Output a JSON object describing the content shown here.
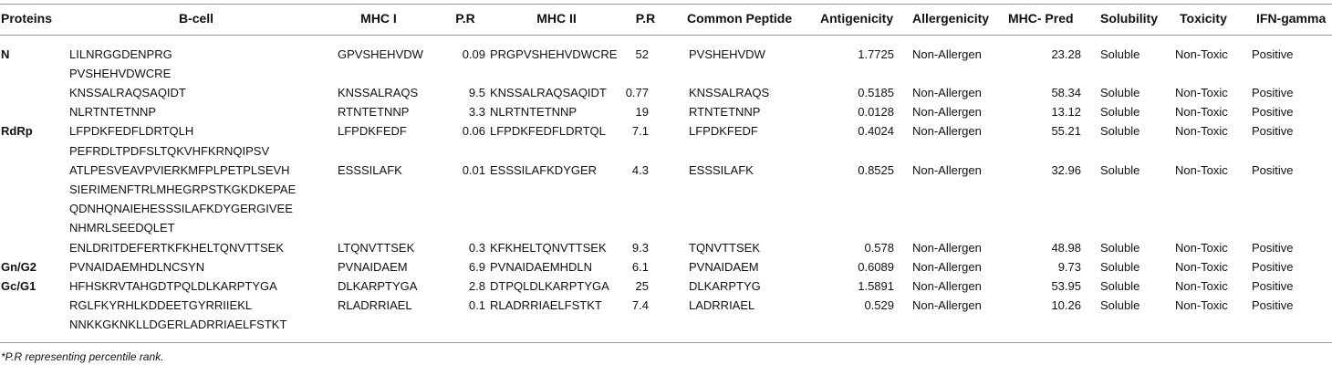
{
  "headers": {
    "proteins": "Proteins",
    "bcell": "B-cell",
    "mhc1": "MHC I",
    "pr1": "P.R",
    "mhc2": "MHC II",
    "pr2": "P.R",
    "common": "Common Peptide",
    "antigenicity": "Antigenicity",
    "allergenicity": "Allergenicity",
    "mhcpred": "MHC- Pred",
    "solubility": "Solubility",
    "toxicity": "Toxicity",
    "ifn": "IFN-gamma"
  },
  "proteins": [
    "N",
    "RdRp",
    "Gn/G2",
    "Gc/G1"
  ],
  "bcell_lines": [
    "LILNRGGDENPRG",
    "PVSHEHVDWCRE",
    "KNSSALRAQSAQIDT",
    "NLRTNTETNNP",
    "LFPDKFEDFLDRTQLH",
    "PEFRDLTPDFSLTQKVHFKRNQIPSV",
    "ATLPESVEAVPVIERKMFPLPETPLSEVH",
    "SIERIMENFTRLMHEGRPSTKGKDKEPAE",
    "QDNHQNAIEHESSSILAFKDYGERGIVEE",
    "NHMRLSEEDQLET",
    "ENLDRITDEFERTKFKHELTQNVTTSEK",
    "PVNAIDAEMHDLNCSYN",
    "HFHSKRVTAHGDTPQLDLKARPTYGA",
    "RGLFKYRHLKDDEETGYRRIIEKL",
    "NNKKGKNKLLDGERLADRRIAELFSTKT"
  ],
  "rows": [
    {
      "mhc1": "GPVSHEHVDW",
      "pr1": "0.09",
      "mhc2": "PRGPVSHEHVDWCRE",
      "pr2": "52",
      "common": "PVSHEHVDW",
      "antigenicity": "1.7725",
      "allergenicity": "Non-Allergen",
      "mhcpred": "23.28",
      "solubility": "Soluble",
      "toxicity": "Non-Toxic",
      "ifn": "Positive"
    },
    {
      "mhc1": "KNSSALRAQS",
      "pr1": "9.5",
      "mhc2": "KNSSALRAQSAQIDT",
      "pr2": "0.77",
      "common": "KNSSALRAQS",
      "antigenicity": "0.5185",
      "allergenicity": "Non-Allergen",
      "mhcpred": "58.34",
      "solubility": "Soluble",
      "toxicity": "Non-Toxic",
      "ifn": "Positive"
    },
    {
      "mhc1": "RTNTETNNP",
      "pr1": "3.3",
      "mhc2": "NLRTNTETNNP",
      "pr2": "19",
      "common": "RTNTETNNP",
      "antigenicity": "0.0128",
      "allergenicity": "Non-Allergen",
      "mhcpred": "13.12",
      "solubility": "Soluble",
      "toxicity": "Non-Toxic",
      "ifn": "Positive"
    },
    {
      "mhc1": "LFPDKFEDF",
      "pr1": "0.06",
      "mhc2": "LFPDKFEDFLDRTQL",
      "pr2": "7.1",
      "common": "LFPDKFEDF",
      "antigenicity": "0.4024",
      "allergenicity": "Non-Allergen",
      "mhcpred": "55.21",
      "solubility": "Soluble",
      "toxicity": "Non-Toxic",
      "ifn": "Positive"
    },
    {
      "mhc1": "ESSSILAFK",
      "pr1": "0.01",
      "mhc2": "ESSSILAFKDYGER",
      "pr2": "4.3",
      "common": "ESSSILAFK",
      "antigenicity": "0.8525",
      "allergenicity": "Non-Allergen",
      "mhcpred": "32.96",
      "solubility": "Soluble",
      "toxicity": "Non-Toxic",
      "ifn": "Positive"
    },
    {
      "mhc1": "LTQNVTTSEK",
      "pr1": "0.3",
      "mhc2": "KFKHELTQNVTTSEK",
      "pr2": "9.3",
      "common": "TQNVTTSEK",
      "antigenicity": "0.578",
      "allergenicity": "Non-Allergen",
      "mhcpred": "48.98",
      "solubility": "Soluble",
      "toxicity": "Non-Toxic",
      "ifn": "Positive"
    },
    {
      "mhc1": "PVNAIDAEM",
      "pr1": "6.9",
      "mhc2": "PVNAIDAEMHDLN",
      "pr2": "6.1",
      "common": "PVNAIDAEM",
      "antigenicity": "0.6089",
      "allergenicity": "Non-Allergen",
      "mhcpred": "9.73",
      "solubility": "Soluble",
      "toxicity": "Non-Toxic",
      "ifn": "Positive"
    },
    {
      "mhc1": "DLKARPTYGA",
      "pr1": "2.8",
      "mhc2": "DTPQLDLKARPTYGA",
      "pr2": "25",
      "common": "DLKARPTYG",
      "antigenicity": "1.5891",
      "allergenicity": "Non-Allergen",
      "mhcpred": "53.95",
      "solubility": "Soluble",
      "toxicity": "Non-Toxic",
      "ifn": "Positive"
    },
    {
      "mhc1": "RLADRRIAEL",
      "pr1": "0.1",
      "mhc2": "RLADRRIAELFSTKT",
      "pr2": "7.4",
      "common": "LADRRIAEL",
      "antigenicity": "0.529",
      "allergenicity": "Non-Allergen",
      "mhcpred": "10.26",
      "solubility": "Soluble",
      "toxicity": "Non-Toxic",
      "ifn": "Positive"
    }
  ],
  "footnote": "*P.R representing percentile rank."
}
